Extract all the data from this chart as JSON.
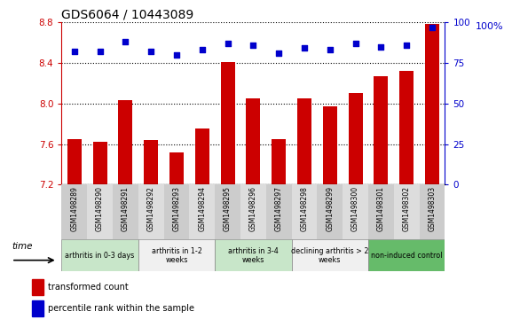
{
  "title": "GDS6064 / 10443089",
  "samples": [
    "GSM1498289",
    "GSM1498290",
    "GSM1498291",
    "GSM1498292",
    "GSM1498293",
    "GSM1498294",
    "GSM1498295",
    "GSM1498296",
    "GSM1498297",
    "GSM1498298",
    "GSM1498299",
    "GSM1498300",
    "GSM1498301",
    "GSM1498302",
    "GSM1498303"
  ],
  "bar_values": [
    7.65,
    7.62,
    8.03,
    7.64,
    7.52,
    7.75,
    8.41,
    8.05,
    7.65,
    8.05,
    7.97,
    8.1,
    8.27,
    8.32,
    8.78
  ],
  "scatter_values": [
    82,
    82,
    88,
    82,
    80,
    83,
    87,
    86,
    81,
    84,
    83,
    87,
    85,
    86,
    97
  ],
  "ylim_left": [
    7.2,
    8.8
  ],
  "ylim_right": [
    0,
    100
  ],
  "yticks_left": [
    7.2,
    7.6,
    8.0,
    8.4,
    8.8
  ],
  "yticks_right": [
    0,
    25,
    50,
    75,
    100
  ],
  "bar_color": "#cc0000",
  "scatter_color": "#0000cc",
  "groups": [
    {
      "label": "arthritis in 0-3 days",
      "start": 0,
      "end": 3,
      "color": "#c8e6c9"
    },
    {
      "label": "arthritis in 1-2\nweeks",
      "start": 3,
      "end": 6,
      "color": "#f0f0f0"
    },
    {
      "label": "arthritis in 3-4\nweeks",
      "start": 6,
      "end": 9,
      "color": "#c8e6c9"
    },
    {
      "label": "declining arthritis > 2\nweeks",
      "start": 9,
      "end": 12,
      "color": "#f0f0f0"
    },
    {
      "label": "non-induced control",
      "start": 12,
      "end": 15,
      "color": "#66bb6a"
    }
  ],
  "legend_items": [
    {
      "label": "transformed count",
      "color": "#cc0000"
    },
    {
      "label": "percentile rank within the sample",
      "color": "#0000cc"
    }
  ],
  "xlabel": "time",
  "right_axis_top_label": "100%",
  "background_color": "#ffffff"
}
